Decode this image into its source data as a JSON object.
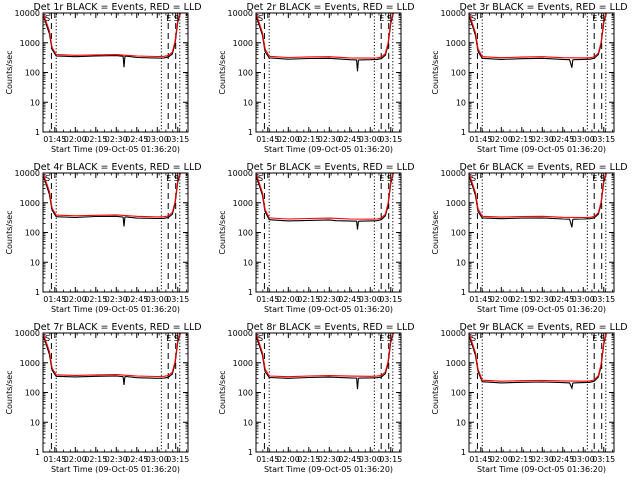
{
  "figure": {
    "ylabel": "Counts/sec",
    "xlabel": "Start Time (09-Oct-05 01:36:20)",
    "marker_labels": {
      "left": "S",
      "right_a": "E",
      "right_b": "S"
    }
  },
  "chart_data": {
    "type": "line",
    "layout": "3x3 grid of panels",
    "yscale": "log",
    "ylim": [
      1,
      10000
    ],
    "yticks": [
      "10000",
      "1000",
      "100",
      "10",
      "1"
    ],
    "xlim": [
      "01:36:20",
      "03:22:30"
    ],
    "xticks": [
      "01:45",
      "02:00",
      "02:15",
      "02:30",
      "02:45",
      "03:00",
      "03:15"
    ],
    "series_colors": {
      "events": "#000000",
      "lld": "#ff0000"
    },
    "panels": [
      {
        "title": "Det 1r BLACK = Events, RED = LLD",
        "markers": {
          "dotted": [
            "01:46:00",
            "03:03:00",
            "03:16:30"
          ],
          "dashed": [
            "01:42:30",
            "03:08:00",
            "03:13:30"
          ]
        },
        "series": [
          {
            "name": "Events",
            "x": [
              "01:36:20",
              "01:41:00",
              "01:43:00",
              "01:46:00",
              "02:00",
              "02:15",
              "02:30",
              "02:35",
              "02:35:40",
              "02:36:20",
              "02:37:00",
              "02:45",
              "03:00",
              "03:05",
              "03:08",
              "03:11",
              "03:13",
              "03:15",
              "03:17",
              "03:22:30"
            ],
            "y": [
              9000,
              2000,
              600,
              360,
              340,
              360,
              370,
              350,
              150,
              340,
              355,
              320,
              305,
              310,
              330,
              420,
              900,
              5000,
              12000,
              12000
            ]
          },
          {
            "name": "LLD",
            "x": [
              "01:36:20",
              "01:41:00",
              "01:43:00",
              "01:46:00",
              "02:00",
              "02:15",
              "02:30",
              "02:45",
              "03:00",
              "03:05",
              "03:08",
              "03:11",
              "03:13",
              "03:15",
              "03:17",
              "03:22:30"
            ],
            "y": [
              10000,
              2500,
              700,
              400,
              380,
              390,
              400,
              360,
              345,
              350,
              370,
              480,
              1100,
              6000,
              13000,
              13000
            ]
          }
        ]
      },
      {
        "title": "Det 2r BLACK = Events, RED = LLD",
        "markers": {
          "dotted": [
            "01:46:00",
            "03:03:00",
            "03:16:30"
          ],
          "dashed": [
            "01:42:30",
            "03:08:00",
            "03:13:30"
          ]
        },
        "series": [
          {
            "name": "Events",
            "x": [
              "01:36:20",
              "01:41:00",
              "01:43:00",
              "01:46:00",
              "02:00",
              "02:15",
              "02:30",
              "02:45",
              "02:50",
              "02:50:40",
              "02:51:20",
              "02:52",
              "03:00",
              "03:05",
              "03:08",
              "03:11",
              "03:13",
              "03:15",
              "03:17",
              "03:22:30"
            ],
            "y": [
              8500,
              1800,
              500,
              310,
              280,
              295,
              300,
              270,
              265,
              110,
              260,
              265,
              270,
              275,
              290,
              380,
              800,
              4500,
              12000,
              12000
            ]
          },
          {
            "name": "LLD",
            "x": [
              "01:36:20",
              "01:41:00",
              "01:43:00",
              "01:46:00",
              "02:00",
              "02:15",
              "02:30",
              "02:45",
              "03:00",
              "03:05",
              "03:08",
              "03:11",
              "03:13",
              "03:15",
              "03:17",
              "03:22:30"
            ],
            "y": [
              10000,
              2200,
              620,
              350,
              320,
              335,
              340,
              310,
              305,
              310,
              330,
              430,
              950,
              5500,
              13000,
              13000
            ]
          }
        ]
      },
      {
        "title": "Det 3r BLACK = Events, RED = LLD",
        "markers": {
          "dotted": [
            "01:46:00",
            "03:03:00",
            "03:16:30"
          ],
          "dashed": [
            "01:42:30",
            "03:08:00",
            "03:13:30"
          ]
        },
        "series": [
          {
            "name": "Events",
            "x": [
              "01:36:20",
              "01:41:00",
              "01:43:00",
              "01:46:00",
              "02:00",
              "02:15",
              "02:30",
              "02:45",
              "02:50",
              "02:51:40",
              "02:52:20",
              "02:53",
              "03:00",
              "03:05",
              "03:08",
              "03:11",
              "03:13",
              "03:15",
              "03:17",
              "03:22:30"
            ],
            "y": [
              8500,
              1800,
              500,
              300,
              275,
              290,
              300,
              275,
              270,
              145,
              265,
              270,
              275,
              280,
              300,
              400,
              850,
              4800,
              12000,
              12000
            ]
          },
          {
            "name": "LLD",
            "x": [
              "01:36:20",
              "01:41:00",
              "01:43:00",
              "01:46:00",
              "02:00",
              "02:15",
              "02:30",
              "02:45",
              "03:00",
              "03:05",
              "03:08",
              "03:11",
              "03:13",
              "03:15",
              "03:17",
              "03:22:30"
            ],
            "y": [
              10000,
              2200,
              620,
              340,
              315,
              330,
              340,
              315,
              310,
              315,
              335,
              450,
              1000,
              5800,
              13000,
              13000
            ]
          }
        ]
      },
      {
        "title": "Det 4r BLACK = Events, RED = LLD",
        "markers": {
          "dotted": [
            "01:46:00",
            "03:03:00",
            "03:16:30"
          ],
          "dashed": [
            "01:42:30",
            "03:08:00",
            "03:13:30"
          ]
        },
        "series": [
          {
            "name": "Events",
            "x": [
              "01:36:20",
              "01:41:00",
              "01:43:00",
              "01:46:00",
              "02:00",
              "02:15",
              "02:30",
              "02:35",
              "02:35:40",
              "02:36:20",
              "02:37:00",
              "02:45",
              "03:00",
              "03:05",
              "03:08",
              "03:11",
              "03:13",
              "03:15",
              "03:17",
              "03:22:30"
            ],
            "y": [
              9000,
              1900,
              560,
              340,
              320,
              345,
              350,
              330,
              160,
              325,
              335,
              305,
              295,
              300,
              320,
              410,
              880,
              5000,
              12000,
              12000
            ]
          },
          {
            "name": "LLD",
            "x": [
              "01:36:20",
              "01:41:00",
              "01:43:00",
              "01:46:00",
              "02:00",
              "02:15",
              "02:30",
              "02:45",
              "03:00",
              "03:05",
              "03:08",
              "03:11",
              "03:13",
              "03:15",
              "03:17",
              "03:22:30"
            ],
            "y": [
              10000,
              2400,
              660,
              385,
              365,
              380,
              390,
              350,
              335,
              340,
              360,
              470,
              1050,
              6000,
              13000,
              13000
            ]
          }
        ]
      },
      {
        "title": "Det 5r BLACK = Events, RED = LLD",
        "markers": {
          "dotted": [
            "01:46:00",
            "03:03:00",
            "03:16:30"
          ],
          "dashed": [
            "01:42:30",
            "03:08:00",
            "03:13:30"
          ]
        },
        "series": [
          {
            "name": "Events",
            "x": [
              "01:36:20",
              "01:41:00",
              "01:43:00",
              "01:46:00",
              "02:00",
              "02:15",
              "02:30",
              "02:35",
              "02:50",
              "02:50:40",
              "02:51:20",
              "02:52",
              "03:00",
              "03:05",
              "03:08",
              "03:11",
              "03:13",
              "03:15",
              "03:17",
              "03:22:30"
            ],
            "y": [
              8500,
              1800,
              500,
              270,
              245,
              255,
              265,
              250,
              240,
              125,
              235,
              240,
              245,
              250,
              270,
              360,
              780,
              4500,
              12000,
              12000
            ]
          },
          {
            "name": "LLD",
            "x": [
              "01:36:20",
              "01:41:00",
              "01:43:00",
              "01:46:00",
              "02:00",
              "02:15",
              "02:30",
              "02:45",
              "03:00",
              "03:05",
              "03:08",
              "03:11",
              "03:13",
              "03:15",
              "03:17",
              "03:22:30"
            ],
            "y": [
              10000,
              2200,
              600,
              310,
              285,
              295,
              305,
              285,
              280,
              285,
              305,
              410,
              930,
              5400,
              13000,
              13000
            ]
          }
        ]
      },
      {
        "title": "Det 6r BLACK = Events, RED = LLD",
        "markers": {
          "dotted": [
            "01:46:00",
            "03:03:00",
            "03:16:30"
          ],
          "dashed": [
            "01:42:30",
            "03:08:00",
            "03:13:30"
          ]
        },
        "series": [
          {
            "name": "Events",
            "x": [
              "01:36:20",
              "01:41:00",
              "01:43:00",
              "01:46:00",
              "02:00",
              "02:15",
              "02:30",
              "02:45",
              "02:50",
              "02:51:40",
              "02:52:20",
              "02:53",
              "03:00",
              "03:05",
              "03:08",
              "03:11",
              "03:13",
              "03:15",
              "03:17",
              "03:22:30"
            ],
            "y": [
              8500,
              1800,
              500,
              310,
              290,
              305,
              310,
              285,
              280,
              150,
              275,
              280,
              285,
              290,
              310,
              410,
              870,
              4900,
              12000,
              12000
            ]
          },
          {
            "name": "LLD",
            "x": [
              "01:36:20",
              "01:41:00",
              "01:43:00",
              "01:46:00",
              "02:00",
              "02:15",
              "02:30",
              "02:45",
              "03:00",
              "03:05",
              "03:08",
              "03:11",
              "03:13",
              "03:15",
              "03:17",
              "03:22:30"
            ],
            "y": [
              10000,
              2200,
              620,
              350,
              330,
              345,
              350,
              325,
              320,
              325,
              345,
              460,
              1020,
              5900,
              13000,
              13000
            ]
          }
        ]
      },
      {
        "title": "Det 7r BLACK = Events, RED = LLD",
        "markers": {
          "dotted": [
            "01:46:00",
            "03:03:00",
            "03:16:30"
          ],
          "dashed": [
            "01:42:30",
            "03:08:00",
            "03:13:30"
          ]
        },
        "series": [
          {
            "name": "Events",
            "x": [
              "01:36:20",
              "01:41:00",
              "01:43:00",
              "01:46:00",
              "02:00",
              "02:15",
              "02:30",
              "02:35",
              "02:35:40",
              "02:36:20",
              "02:37:00",
              "02:45",
              "03:00",
              "03:05",
              "03:08",
              "03:11",
              "03:13",
              "03:15",
              "03:17",
              "03:22:30"
            ],
            "y": [
              9000,
              1900,
              560,
              350,
              335,
              350,
              360,
              340,
              180,
              335,
              345,
              315,
              300,
              305,
              325,
              420,
              900,
              5000,
              12000,
              12000
            ]
          },
          {
            "name": "LLD",
            "x": [
              "01:36:20",
              "01:41:00",
              "01:43:00",
              "01:46:00",
              "02:00",
              "02:15",
              "02:30",
              "02:45",
              "03:00",
              "03:05",
              "03:08",
              "03:11",
              "03:13",
              "03:15",
              "03:17",
              "03:22:30"
            ],
            "y": [
              10000,
              2400,
              660,
              395,
              375,
              390,
              400,
              360,
              345,
              350,
              370,
              480,
              1080,
              6000,
              13000,
              13000
            ]
          }
        ]
      },
      {
        "title": "Det 8r BLACK = Events, RED = LLD",
        "markers": {
          "dotted": [
            "01:46:00",
            "03:03:00",
            "03:16:30"
          ],
          "dashed": [
            "01:42:30",
            "03:08:00",
            "03:13:30"
          ]
        },
        "series": [
          {
            "name": "Events",
            "x": [
              "01:36:20",
              "01:41:00",
              "01:43:00",
              "01:46:00",
              "02:00",
              "02:15",
              "02:30",
              "02:45",
              "02:50",
              "02:50:40",
              "02:51:20",
              "02:52",
              "03:00",
              "03:05",
              "03:08",
              "03:11",
              "03:13",
              "03:15",
              "03:17",
              "03:22:30"
            ],
            "y": [
              8500,
              1800,
              500,
              320,
              300,
              320,
              330,
              310,
              305,
              130,
              300,
              305,
              310,
              315,
              330,
              430,
              900,
              5000,
              12000,
              12000
            ]
          },
          {
            "name": "LLD",
            "x": [
              "01:36:20",
              "01:41:00",
              "01:43:00",
              "01:46:00",
              "02:00",
              "02:15",
              "02:30",
              "02:45",
              "03:00",
              "03:05",
              "03:08",
              "03:11",
              "03:13",
              "03:15",
              "03:17",
              "03:22:30"
            ],
            "y": [
              10000,
              2200,
              620,
              360,
              340,
              360,
              370,
              355,
              350,
              355,
              375,
              490,
              1100,
              6100,
              13000,
              13000
            ]
          }
        ]
      },
      {
        "title": "Det 9r BLACK = Events, RED = LLD",
        "markers": {
          "dotted": [
            "01:46:00",
            "03:03:00",
            "03:16:30"
          ],
          "dashed": [
            "01:42:30",
            "03:08:00",
            "03:13:30"
          ]
        },
        "series": [
          {
            "name": "Events",
            "x": [
              "01:36:20",
              "01:41:00",
              "01:43:00",
              "01:46:00",
              "02:00",
              "02:15",
              "02:30",
              "02:45",
              "02:50",
              "02:51:40",
              "02:52:20",
              "02:53",
              "03:00",
              "03:05",
              "03:08",
              "03:11",
              "03:13",
              "03:15",
              "03:17",
              "03:22:30"
            ],
            "y": [
              8500,
              1800,
              500,
              230,
              210,
              220,
              225,
              215,
              210,
              140,
              205,
              210,
              215,
              220,
              240,
              330,
              720,
              4300,
              12000,
              12000
            ]
          },
          {
            "name": "LLD",
            "x": [
              "01:36:20",
              "01:41:00",
              "01:43:00",
              "01:46:00",
              "02:00",
              "02:15",
              "02:30",
              "02:45",
              "03:00",
              "03:05",
              "03:08",
              "03:11",
              "03:13",
              "03:15",
              "03:17",
              "03:22:30"
            ],
            "y": [
              10000,
              2200,
              600,
              260,
              240,
              250,
              255,
              245,
              240,
              245,
              265,
              370,
              850,
              5000,
              13000,
              13000
            ]
          }
        ]
      }
    ]
  }
}
